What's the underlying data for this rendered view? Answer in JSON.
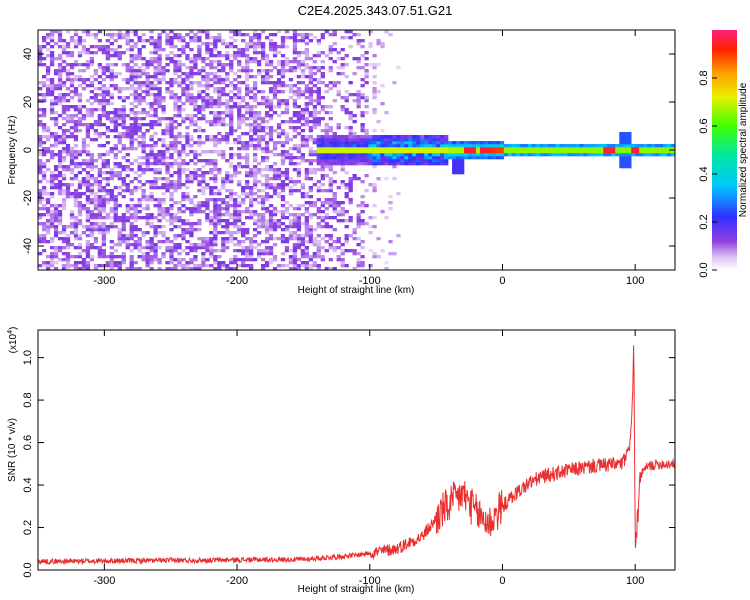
{
  "figure": {
    "title": "C2E4.2025.343.07.51.G21"
  },
  "chart_data": [
    {
      "type": "heatmap",
      "xlabel": "Height of straight line (km)",
      "ylabel": "Frequency (Hz)",
      "xlim": [
        -350,
        130
      ],
      "ylim": [
        -50,
        50
      ],
      "xticks": [
        "-300",
        "-200",
        "-100",
        "0",
        "100"
      ],
      "yticks": [
        "-40",
        "-20",
        "0",
        "20",
        "40"
      ],
      "colorbar": {
        "label": "Normalized spectral amplitude",
        "range": [
          0,
          1
        ],
        "ticks": [
          "0.0",
          "0.2",
          "0.4",
          "0.6",
          "0.8"
        ],
        "colormap": "rainbow-violet-to-red"
      },
      "features": {
        "noise_region_x": [
          -350,
          -70
        ],
        "noise_amplitude": 0.1,
        "carrier_frequency": 0,
        "carrier_onset_x": -140,
        "carrier_strong_x": [
          -40,
          130
        ],
        "carrier_amplitude": 0.75,
        "spikes": [
          {
            "x": -25,
            "amplitude": 0.95
          },
          {
            "x": -12,
            "amplitude": 0.95
          },
          {
            "x": -3,
            "amplitude": 0.9
          },
          {
            "x": 80,
            "amplitude": 0.95
          },
          {
            "x": 100,
            "amplitude": 0.95
          }
        ],
        "disturbance_x": 92
      }
    },
    {
      "type": "line",
      "xlabel": "Height of straight line (km)",
      "ylabel": "SNR (10 * v/v)",
      "y_multiplier": "(x10",
      "y_multiplier_exp": "4",
      "y_multiplier_close": ")",
      "xlim": [
        -350,
        130
      ],
      "ylim": [
        0.0,
        1.13
      ],
      "xticks": [
        "-300",
        "-200",
        "-100",
        "0",
        "100"
      ],
      "yticks": [
        "0.0",
        "0.2",
        "0.4",
        "0.6",
        "0.8",
        "1.0"
      ],
      "series": [
        {
          "color": "#e83030",
          "points": [
            [
              -350,
              0.04
            ],
            [
              -250,
              0.045
            ],
            [
              -150,
              0.05
            ],
            [
              -110,
              0.07
            ],
            [
              -80,
              0.1
            ],
            [
              -60,
              0.16
            ],
            [
              -45,
              0.28
            ],
            [
              -30,
              0.36
            ],
            [
              -20,
              0.27
            ],
            [
              -10,
              0.22
            ],
            [
              0,
              0.3
            ],
            [
              10,
              0.36
            ],
            [
              20,
              0.41
            ],
            [
              30,
              0.44
            ],
            [
              50,
              0.47
            ],
            [
              70,
              0.49
            ],
            [
              90,
              0.5
            ],
            [
              95,
              0.55
            ],
            [
              98,
              0.78
            ],
            [
              99,
              1.1
            ],
            [
              100,
              0.1
            ],
            [
              102,
              0.25
            ],
            [
              104,
              0.45
            ],
            [
              110,
              0.49
            ],
            [
              120,
              0.5
            ],
            [
              130,
              0.5
            ]
          ]
        }
      ]
    }
  ]
}
